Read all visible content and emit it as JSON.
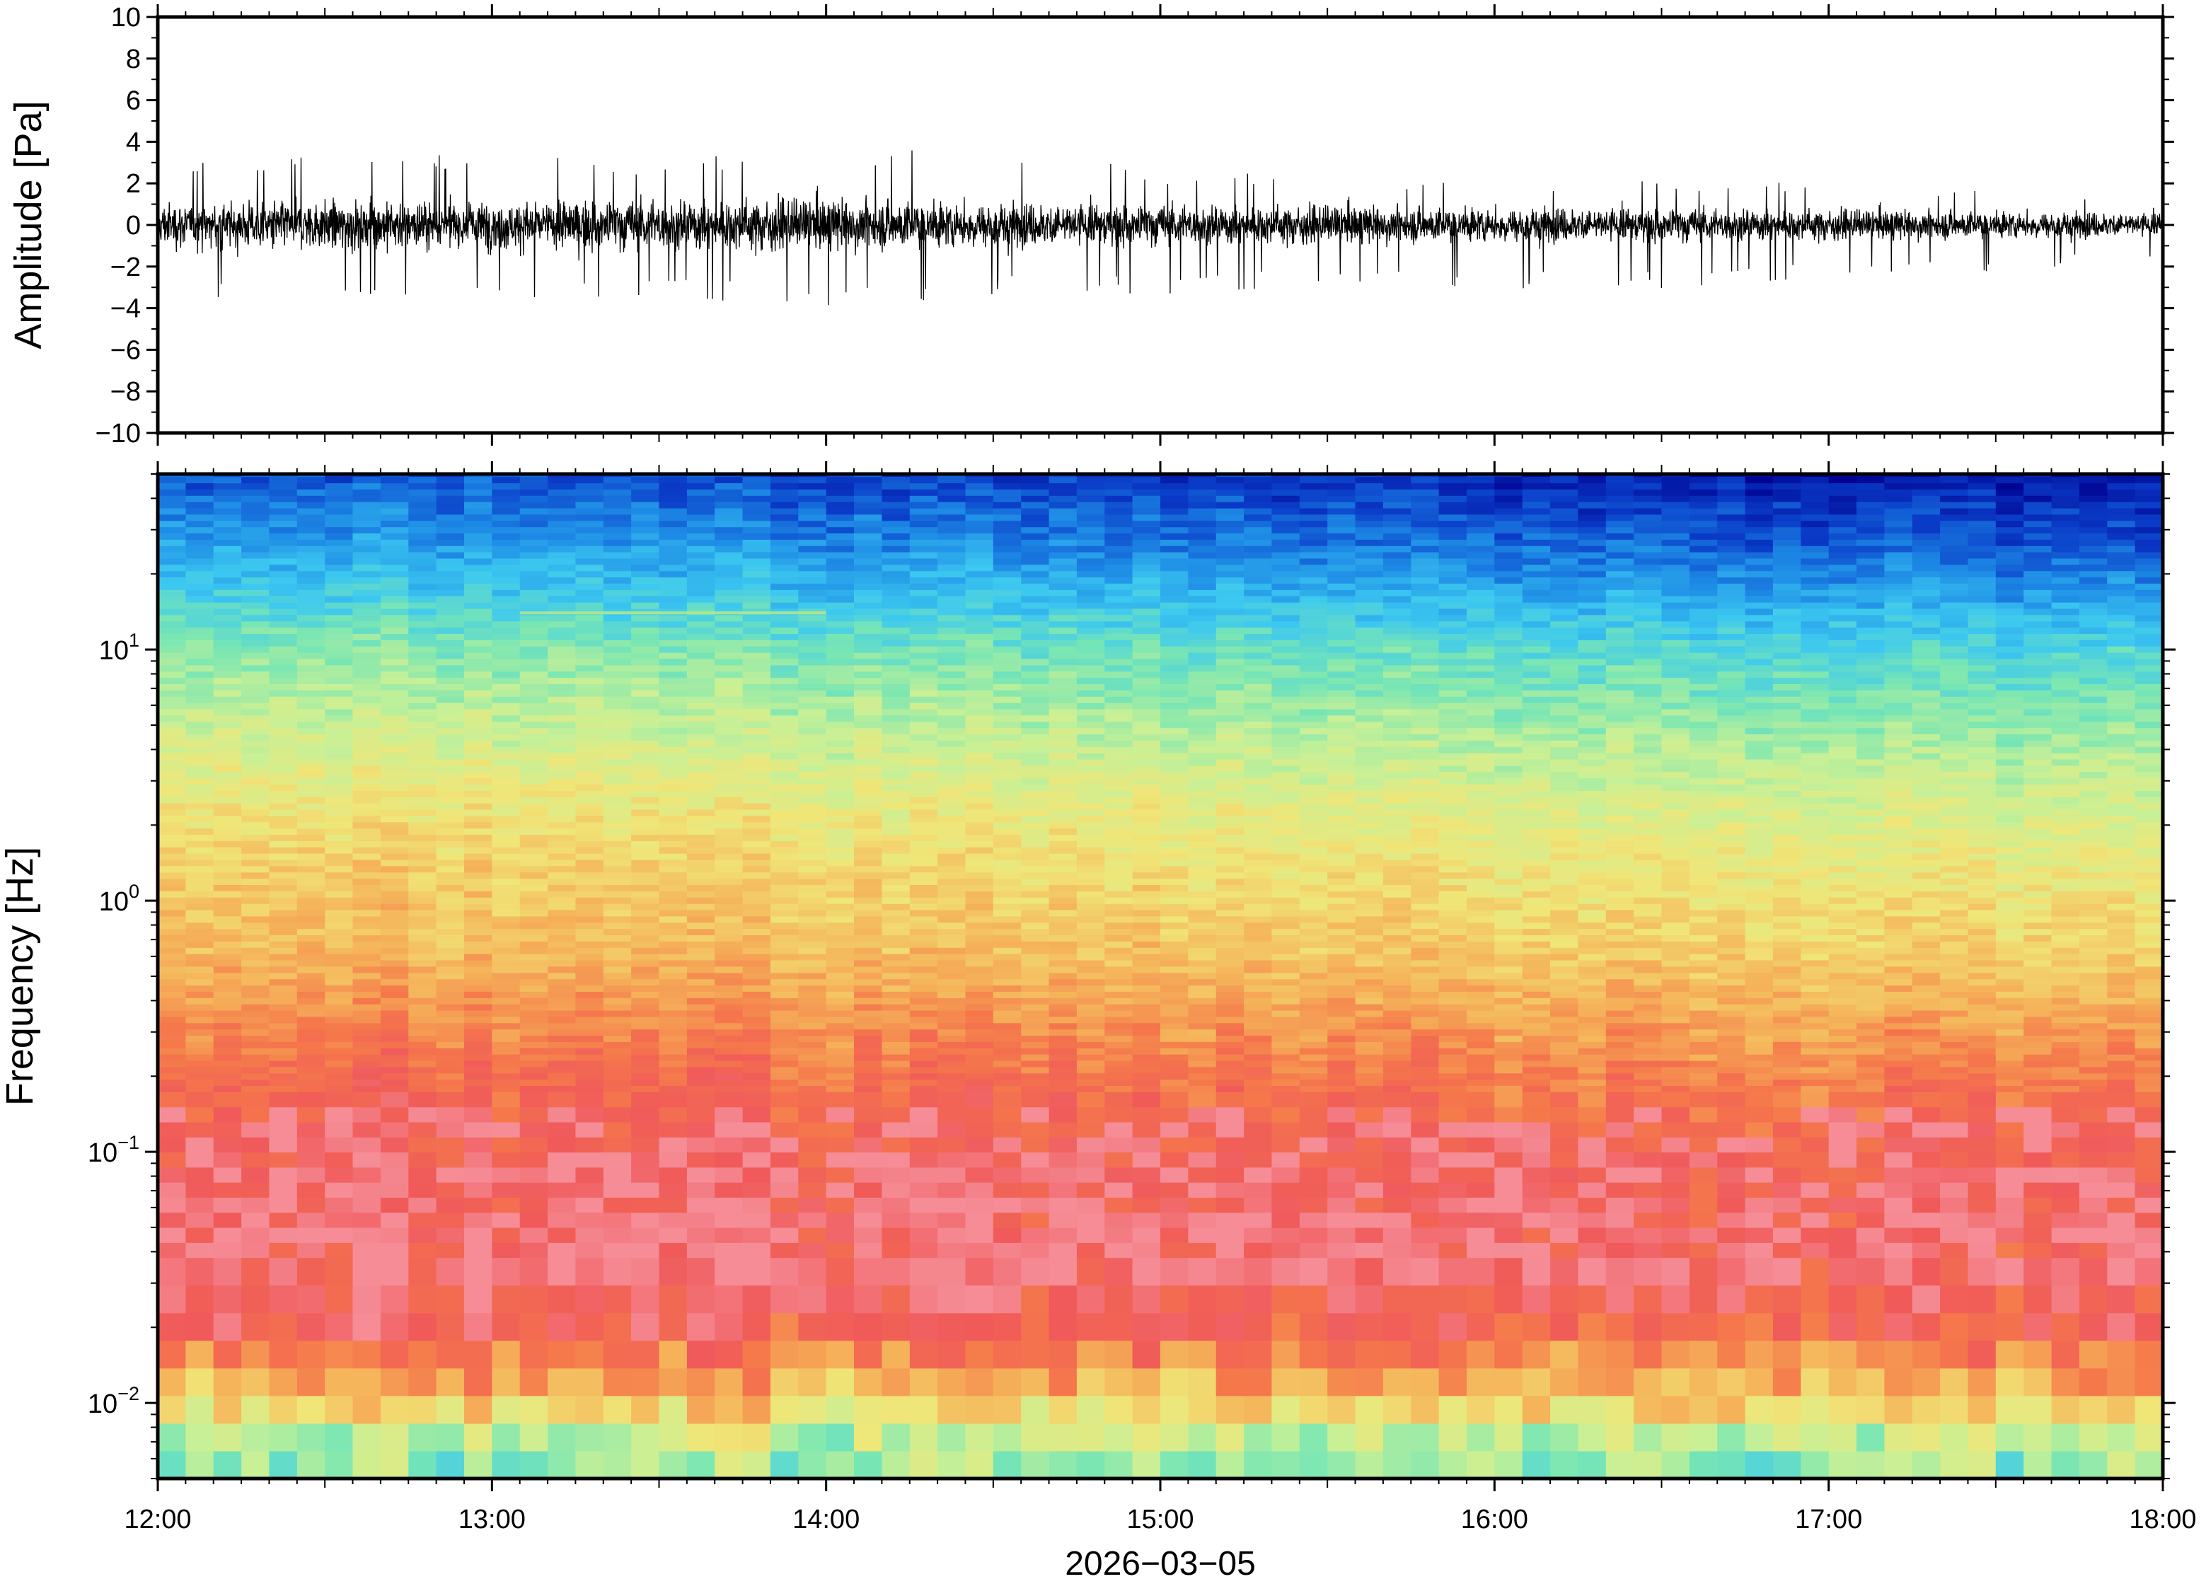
{
  "chart_data": [
    {
      "type": "line",
      "ylabel": "Amplitude [Pa]",
      "ylim": [
        -10,
        10
      ],
      "yticks": [
        10,
        8,
        6,
        4,
        2,
        0,
        -2,
        -4,
        -6,
        -8,
        -10
      ],
      "ytick_labels": [
        "10",
        "8",
        "6",
        "4",
        "2",
        "0",
        "−2",
        "−4",
        "−6",
        "−8",
        "−10"
      ],
      "xlim": [
        "12:00",
        "18:00"
      ],
      "series": [
        {
          "color": "#000000",
          "envelope": {
            "x": [
              "12:00",
              "12:30",
              "13:00",
              "13:30",
              "14:00",
              "14:30",
              "15:00",
              "15:30",
              "16:00",
              "16:30",
              "17:00",
              "17:30",
              "18:00"
            ],
            "max": [
              3.0,
              3.3,
              3.4,
              3.3,
              3.6,
              4.4,
              2.7,
              2.4,
              2.2,
              2.3,
              2.0,
              1.8,
              1.6
            ],
            "min": [
              -3.1,
              -4.2,
              -3.9,
              -3.5,
              -4.3,
              -3.4,
              -3.5,
              -3.0,
              -3.1,
              -3.2,
              -2.6,
              -2.3,
              -1.6
            ],
            "typical_half_range": [
              1.3,
              1.4,
              1.4,
              1.5,
              1.5,
              1.3,
              1.2,
              1.1,
              1.0,
              1.0,
              0.9,
              0.8,
              0.7
            ]
          }
        }
      ]
    },
    {
      "type": "heatmap",
      "ylabel": "Frequency [Hz]",
      "xlabel": "2026−03−05",
      "yscale": "log",
      "ylim": [
        0.005,
        50
      ],
      "yticks": [
        0.01,
        0.1,
        1,
        10
      ],
      "ytick_labels": [
        {
          "base": "10",
          "exp": "−2"
        },
        {
          "base": "10",
          "exp": "−1"
        },
        {
          "base": "10",
          "exp": "0"
        },
        {
          "base": "10",
          "exp": "1"
        }
      ],
      "x": [
        "12:00",
        "13:00",
        "14:00",
        "15:00",
        "16:00",
        "17:00",
        "18:00"
      ],
      "xtick_labels": [
        "12:00",
        "13:00",
        "14:00",
        "15:00",
        "16:00",
        "17:00",
        "18:00"
      ],
      "colormap": [
        "#00008f",
        "#0a3cc8",
        "#1e8ce6",
        "#3cc8f0",
        "#78e6b4",
        "#c8f096",
        "#f0e678",
        "#f5b45a",
        "#f5784b",
        "#f05a5a",
        "#f58c96"
      ],
      "colorbar": "none",
      "level_profile": {
        "log10_freq": [
          -2.3,
          -2.1,
          -2.0,
          -1.85,
          -1.7,
          -1.5,
          -1.3,
          -1.0,
          -0.7,
          -0.4,
          -0.2,
          0.2,
          0.5,
          0.8,
          1.0,
          1.2,
          1.45,
          1.7
        ],
        "level_12h": [
          4.3,
          5.2,
          6.6,
          7.6,
          9.0,
          9.6,
          9.4,
          9.0,
          8.6,
          7.6,
          7.0,
          6.5,
          5.8,
          5.0,
          4.4,
          3.4,
          2.4,
          1.4
        ],
        "level_18h": [
          4.0,
          5.2,
          6.8,
          7.4,
          8.6,
          9.1,
          9.0,
          8.6,
          7.8,
          6.9,
          6.4,
          5.6,
          4.9,
          3.9,
          3.3,
          2.3,
          1.1,
          0.3
        ]
      },
      "annotations": [
        {
          "type": "narrowband-line",
          "freq_hz": 14,
          "x_start": "13:05",
          "x_end": "14:00"
        }
      ]
    }
  ]
}
